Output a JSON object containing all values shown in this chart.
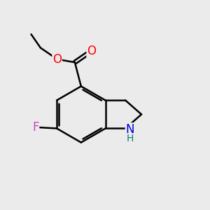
{
  "background_color": "#ebebeb",
  "bond_color": "#000000",
  "bond_width": 1.8,
  "atom_labels": {
    "O_ester": {
      "text": "O",
      "color": "#ff0000",
      "fontsize": 12
    },
    "O_carbonyl": {
      "text": "O",
      "color": "#ff0000",
      "fontsize": 12
    },
    "F": {
      "text": "F",
      "color": "#cc44cc",
      "fontsize": 12
    },
    "N": {
      "text": "N",
      "color": "#0000dd",
      "fontsize": 12
    },
    "H": {
      "text": "H",
      "color": "#008080",
      "fontsize": 10
    }
  },
  "figsize": [
    3.0,
    3.0
  ],
  "dpi": 100
}
